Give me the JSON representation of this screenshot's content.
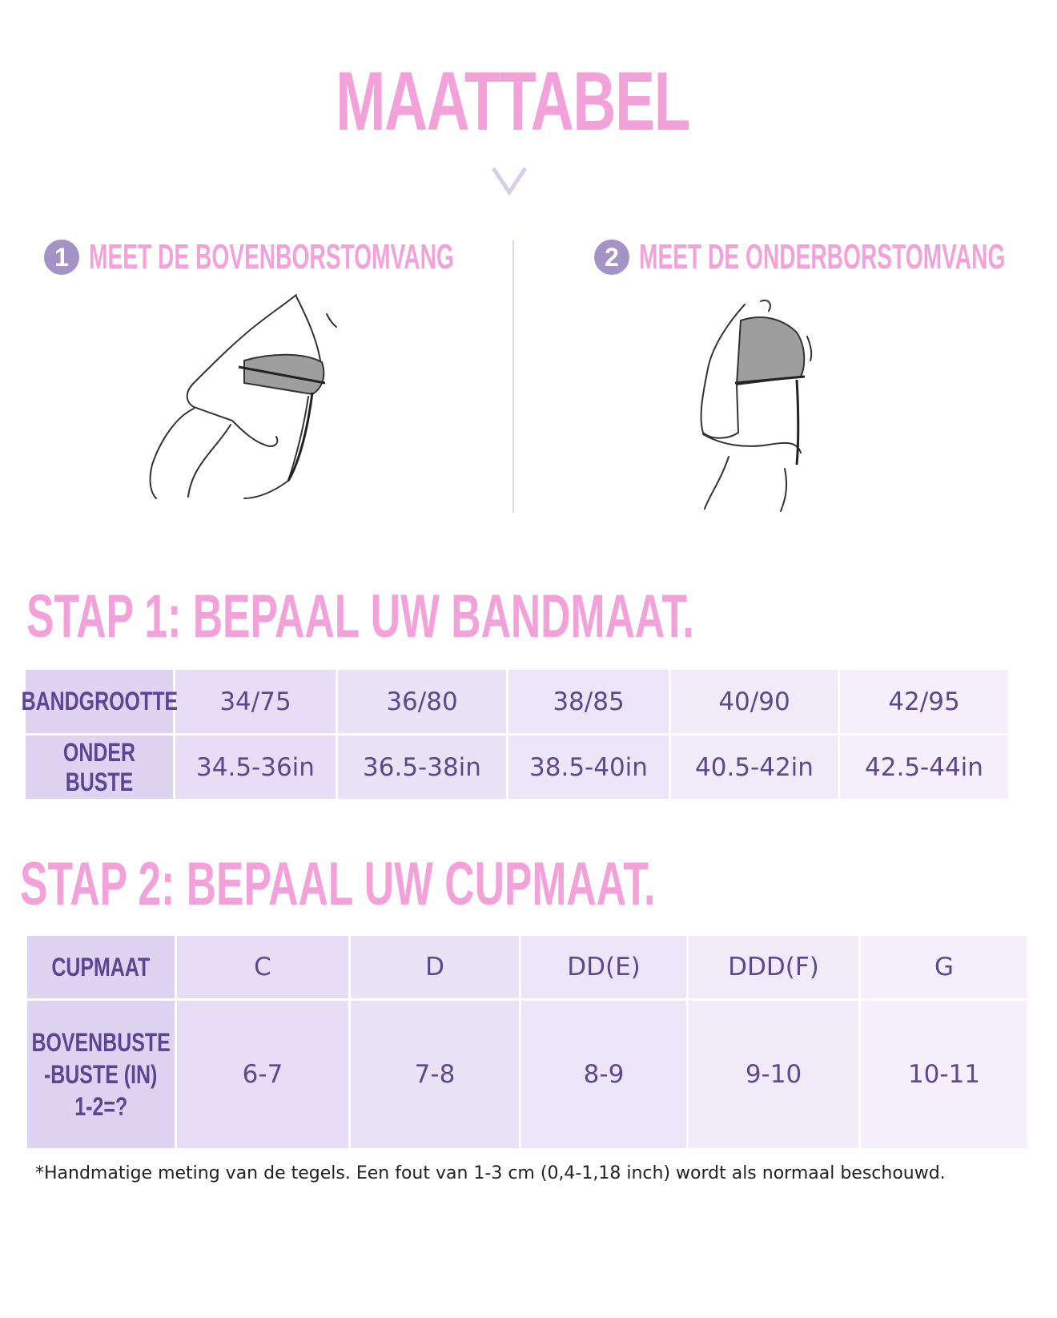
{
  "title": "MAATTABEL",
  "step1": {
    "num": "1",
    "label": "MEET DE BOVENBORSTOMVANG"
  },
  "step2": {
    "num": "2",
    "label": "MEET DE ONDERBORSTOMVANG"
  },
  "band_section": {
    "title": "STAP 1: BEPAAL UW BANDMAAT.",
    "row_headers": [
      "BANDGROOTTE",
      "ONDER BUSTE"
    ],
    "sizes": [
      "34/75",
      "36/80",
      "38/85",
      "40/90",
      "42/95"
    ],
    "under_bust": [
      "34.5-36in",
      "36.5-38in",
      "38.5-40in",
      "40.5-42in",
      "42.5-44in"
    ]
  },
  "cup_section": {
    "title": "STAP 2: BEPAAL UW CUPMAAT.",
    "row_header_1": "CUPMAAT",
    "row_header_2": [
      "BOVENBUSTE",
      "-BUSTE (IN)",
      "1-2=?"
    ],
    "cups": [
      "C",
      "D",
      "DD(E)",
      "DDD(F)",
      "G"
    ],
    "difference": [
      "6-7",
      "7-8",
      "8-9",
      "9-10",
      "10-11"
    ]
  },
  "footnote": "*Handmatige meting van de tegels. Een fout van 1-3 cm (0,4-1,18 inch) wordt als normaal beschouwd.",
  "colors": {
    "pink": "#f2a2d9",
    "purple_text": "#5a4a8c",
    "circle": "#a593c6"
  }
}
